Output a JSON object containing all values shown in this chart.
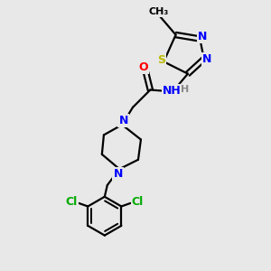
{
  "bg_color": "#e8e8e8",
  "bond_color": "#000000",
  "bond_width": 1.6,
  "atom_colors": {
    "N": "#0000ff",
    "O": "#ff0000",
    "S": "#bbbb00",
    "Cl": "#00aa00",
    "H": "#888888",
    "C": "#000000"
  },
  "font_size": 9,
  "fig_width": 3.0,
  "fig_height": 3.0,
  "dpi": 100
}
